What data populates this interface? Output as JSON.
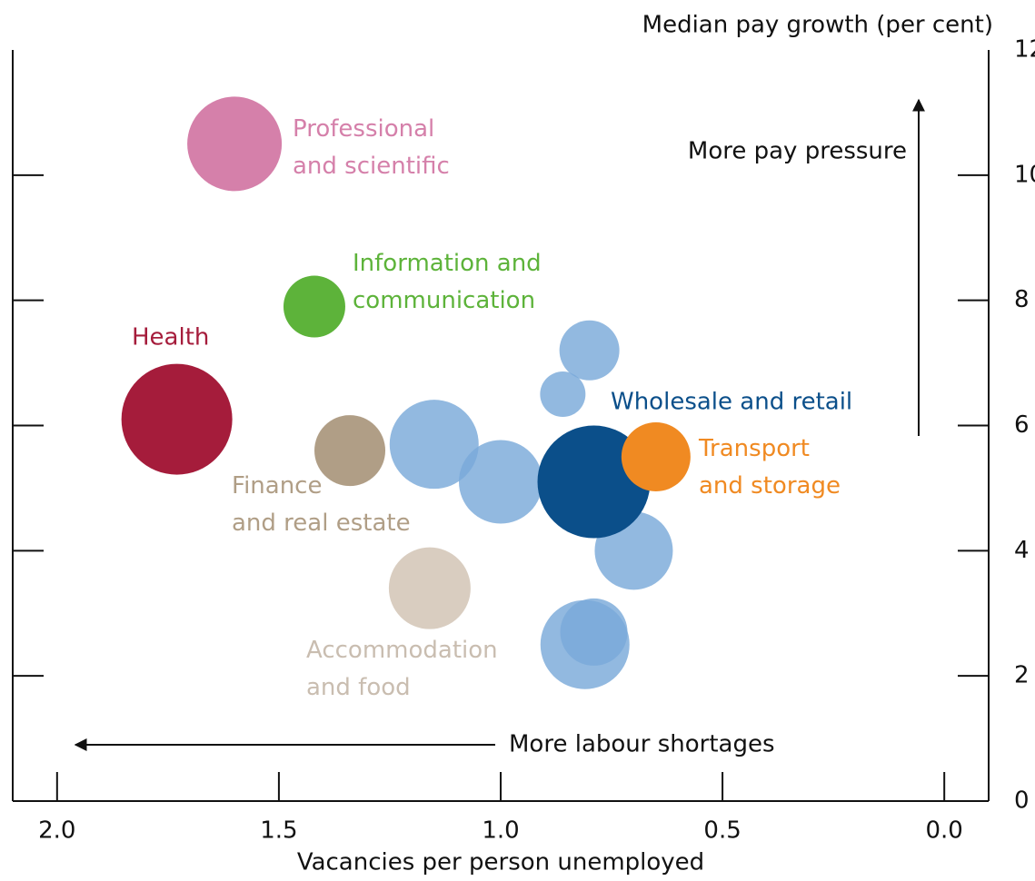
{
  "chart_data": {
    "type": "bubble",
    "y_label": "Median pay growth (per cent)",
    "x_label": "Vacancies per person unemployed",
    "annotations": [
      "More pay pressure",
      "More labour shortages"
    ],
    "xlim": [
      2.1,
      -0.1
    ],
    "xticks": [
      {
        "value": 2,
        "label": "2.0"
      },
      {
        "value": 1.5,
        "label": "1.5"
      },
      {
        "value": 1,
        "label": "1.0"
      },
      {
        "value": 0.5,
        "label": "0.5"
      },
      {
        "value": 0,
        "label": "0.0"
      }
    ],
    "ylim": [
      0,
      12
    ],
    "yticks": [
      0,
      2,
      4,
      6,
      8,
      10,
      12
    ],
    "series": [
      {
        "name": "Professional\nand scientific",
        "color": "#d580aa",
        "x": [
          1.6
        ],
        "values": [
          10.5
        ],
        "sizes": [
          52
        ]
      },
      {
        "name": "Information and\ncommunication",
        "color": "#5db33a",
        "x": [
          1.42
        ],
        "values": [
          7.9
        ],
        "sizes": [
          34
        ]
      },
      {
        "name": "Health",
        "color": "#a51c3b",
        "x": [
          1.73
        ],
        "values": [
          6.1
        ],
        "sizes": [
          61
        ]
      },
      {
        "name": "Finance\nand real estate",
        "color": "#b09e86",
        "x": [
          1.34
        ],
        "values": [
          5.6
        ],
        "sizes": [
          39
        ]
      },
      {
        "name": "Accommodation\nand food",
        "color": "#d9cdc0",
        "x": [
          1.16
        ],
        "values": [
          3.4
        ],
        "sizes": [
          45
        ]
      },
      {
        "color": "#7aaad9",
        "x": [
          0.8,
          0.86,
          1.15,
          1.0,
          0.7,
          0.81,
          0.79
        ],
        "values": [
          7.2,
          6.5,
          5.7,
          5.1,
          4.0,
          2.5,
          2.7
        ],
        "sizes": [
          33,
          25,
          49,
          46,
          43,
          49,
          37
        ]
      },
      {
        "name": "Wholesale and retail",
        "color": "#0b4f8a",
        "x": [
          0.79
        ],
        "values": [
          5.1
        ],
        "sizes": [
          62
        ]
      },
      {
        "name": "Transport\nand storage",
        "color": "#f08a22",
        "x": [
          0.65
        ],
        "values": [
          5.5
        ],
        "sizes": [
          38
        ]
      }
    ]
  }
}
